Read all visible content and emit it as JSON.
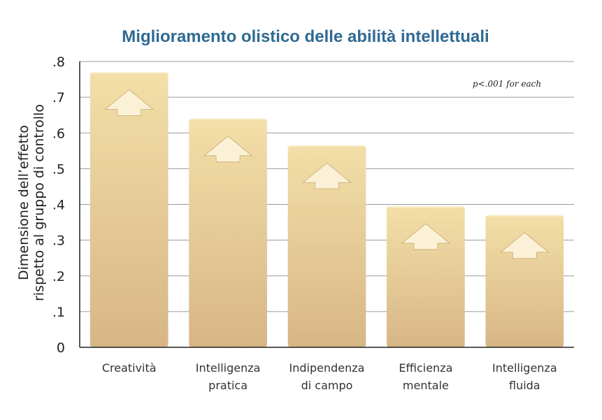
{
  "chart_data": {
    "type": "bar",
    "title": "Miglioramento olistico delle abilità intellettuali",
    "ylabel_lines": [
      "Dimensione dell’effetto",
      "rispetto al gruppo di controllo"
    ],
    "xlabel": "",
    "note": "p<.001 for each",
    "categories": [
      [
        "Creatività"
      ],
      [
        "Intelligenza",
        "pratica"
      ],
      [
        "Indipendenza",
        "di campo"
      ],
      [
        "Efficienza",
        "mentale"
      ],
      [
        "Intelligenza",
        "fluida"
      ]
    ],
    "values": [
      0.77,
      0.64,
      0.565,
      0.395,
      0.37
    ],
    "ylim": [
      0,
      0.8
    ],
    "yticks": [
      0,
      0.1,
      0.2,
      0.3,
      0.4,
      0.5,
      0.6,
      0.7,
      0.8
    ],
    "ytick_labels": [
      "0",
      ".1",
      ".2",
      ".3",
      ".4",
      ".5",
      ".6",
      ".7",
      ".8"
    ],
    "grid": true,
    "colors": {
      "bar_top": "#f3dfa8",
      "bar_bottom": "#d7b685",
      "arrow": "#fbf1d6",
      "grid": "#9a9a9a",
      "title": "#2f6a93"
    }
  }
}
